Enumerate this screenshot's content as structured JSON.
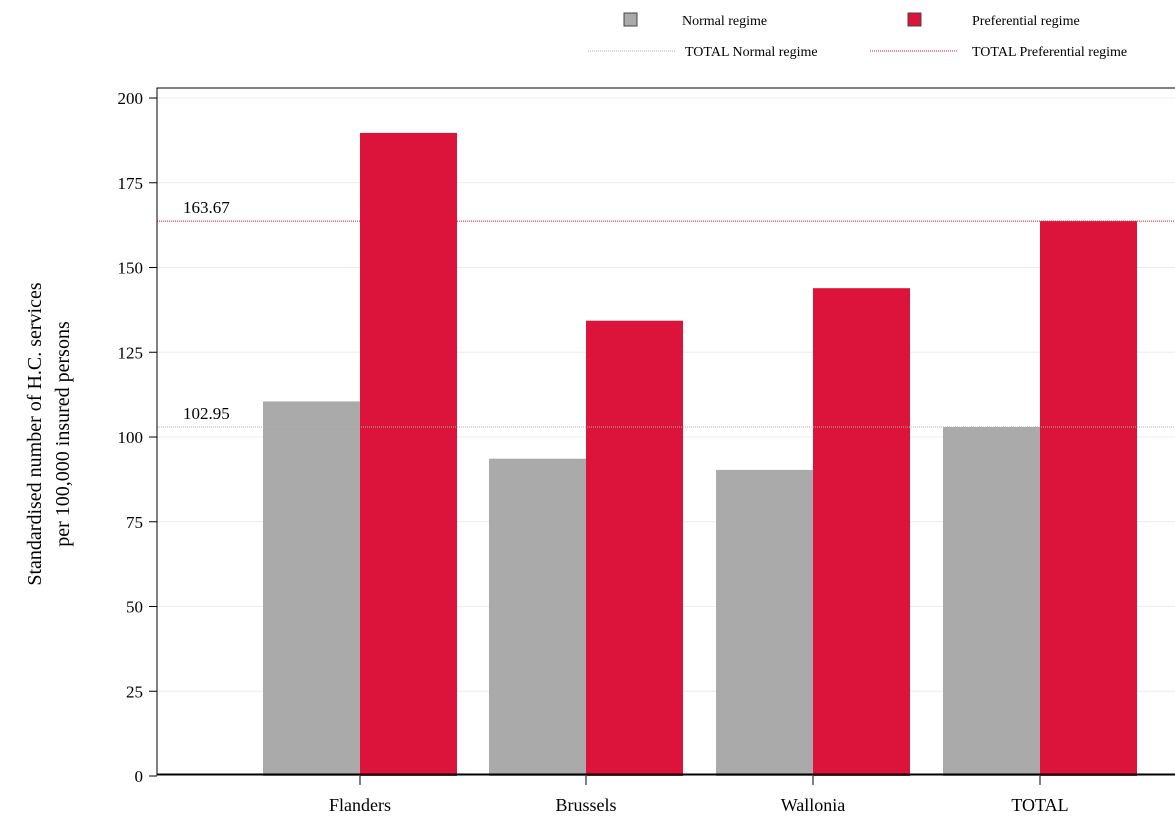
{
  "chart_data": {
    "type": "bar",
    "categories": [
      "Flanders",
      "Brussels",
      "Wallonia",
      "TOTAL"
    ],
    "series": [
      {
        "name": "Normal regime",
        "values": [
          110.5,
          93.6,
          90.3,
          102.95
        ],
        "color": "#aaaaaa"
      },
      {
        "name": "Preferential regime",
        "values": [
          189.7,
          134.3,
          143.9,
          163.67
        ],
        "color": "#dc143c"
      }
    ],
    "reference_lines": [
      {
        "name": "TOTAL Normal regime",
        "value": 102.95,
        "label": "102.95",
        "color": "#b0b0b0"
      },
      {
        "name": "TOTAL Preferential regime",
        "value": 163.67,
        "label": "163.67",
        "color": "#dc143c"
      }
    ],
    "ylabel_lines": [
      "Standardised number of H.C. services",
      "per 100,000 insured persons"
    ],
    "xlabel": "",
    "ylim": [
      0,
      200
    ],
    "yticks": [
      "0",
      "25",
      "50",
      "75",
      "100",
      "125",
      "150",
      "175",
      "200"
    ],
    "grid": true,
    "legend_position": "top-right"
  }
}
